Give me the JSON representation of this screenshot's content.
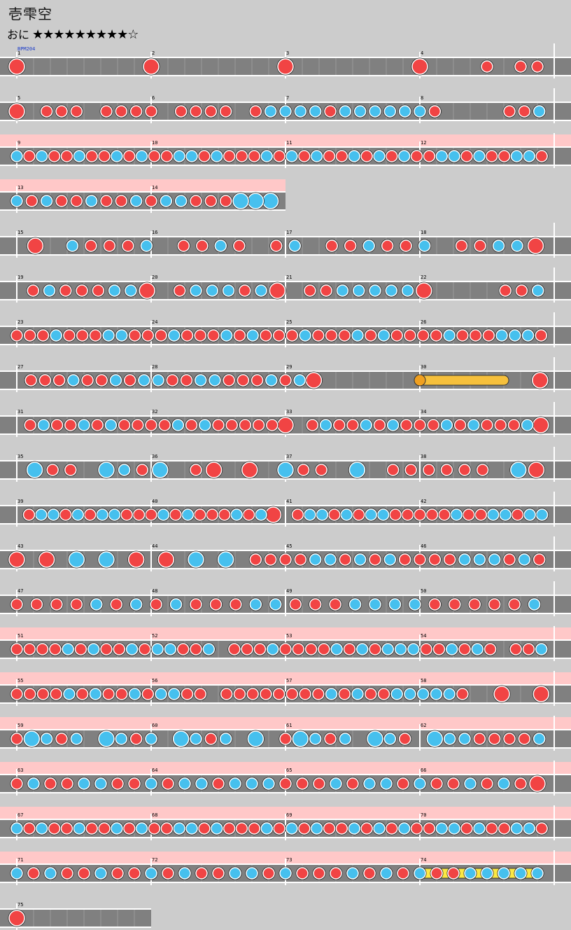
{
  "song": {
    "title": "壱雫空",
    "difficulty_label": "おに",
    "stars": "★★★★★★★★★☆"
  },
  "bpm_marker": {
    "label": "BPM204",
    "measure": 1
  },
  "colors": {
    "don": "#f14444",
    "ka": "#46c0ee",
    "lane": "#808080",
    "gogo": "#ffc8c8",
    "drumroll": "#f6c03c",
    "balloon_roll": "#fbe844",
    "background": "#cccccc"
  },
  "layout_info": {
    "measures_per_row": 4,
    "beats_per_measure": 8
  },
  "rows": [
    {
      "measures": [
        1,
        2,
        3,
        4
      ],
      "gogo": false,
      "lengths": [
        4,
        4,
        4,
        4
      ],
      "notes": "D.......D.......D.......D...d.dd"
    },
    {
      "measures": [
        5,
        6,
        7,
        8
      ],
      "gogo": false,
      "lengths": [
        4,
        4,
        4,
        4
      ],
      "notes": "D.ddd.dddd.dddd.dkkkkdkkkkkkd....ddk"
    },
    {
      "measures": [
        9,
        10,
        11,
        12
      ],
      "gogo": true,
      "lengths": [
        4,
        4,
        4,
        4
      ],
      "notes": "kdkddkddkdkddkkdkdddkdkdkddkdkdkddkkdkddkkd"
    },
    {
      "measures": [
        13,
        14
      ],
      "gogo": true,
      "lengths": [
        4,
        4
      ],
      "notes": "kdkddkddkdkkdddKKK"
    },
    {
      "measures": [
        15,
        16,
        17,
        18
      ],
      "gogo": false,
      "lengths": [
        4,
        4,
        4,
        4
      ],
      "notes": ".D.kdddk.ddkd.dk.ddkddk.ddkkD"
    },
    {
      "measures": [
        19,
        20,
        21,
        22
      ],
      "gogo": false,
      "lengths": [
        4,
        4,
        4,
        4
      ],
      "notes": ".dkdddkkD.dkkkdkD.ddkkkkkD....ddk"
    },
    {
      "measures": [
        23,
        24,
        25,
        26
      ],
      "gogo": false,
      "lengths": [
        4,
        4,
        4,
        4
      ],
      "notes": "dddkdddkkdddkdddkdkdddkdddkdkddddkdddkkkd"
    },
    {
      "measures": [
        27,
        28,
        29,
        30
      ],
      "gogo": false,
      "lengths": [
        4,
        4,
        4,
        4
      ],
      "notes": ".dddkddkdkkddkkdddkdkD...............D",
      "drumroll": {
        "start_measure": 30,
        "start_beat": 0,
        "end_measure": 30,
        "end_beat": 5,
        "balloon": true
      }
    },
    {
      "measures": [
        31,
        32,
        33,
        34
      ],
      "gogo": false,
      "lengths": [
        4,
        4,
        4,
        4
      ],
      "notes": ".dkddkdkddddkdkdddddD.dkddkdkdddkdkdddkD"
    },
    {
      "measures": [
        35,
        36,
        37,
        38
      ],
      "gogo": false,
      "lengths": [
        4,
        4,
        4,
        4
      ],
      "notes": ".Kdd.KkdK.dD.D.Kdd.K.dddddd.KD"
    },
    {
      "measures": [
        39,
        40,
        41,
        42
      ],
      "gogo": false,
      "lengths": [
        4,
        4,
        4,
        4
      ],
      "notes": ".dkkdkdkkdddkdkdddkdkD.dkkdkdkkdddddkddkkdkk"
    },
    {
      "measures": [
        43,
        44,
        45,
        46
      ],
      "gogo": false,
      "lengths": [
        4,
        4,
        4,
        4
      ],
      "notes": "D.D.K.K.D.D.K.K.ddddkkdkdkddddkkkdkd"
    },
    {
      "measures": [
        47,
        48,
        49,
        50
      ],
      "gogo": false,
      "lengths": [
        4,
        4,
        4,
        4
      ],
      "notes": "ddddkdkdkdddkkdddkkkkdddddk"
    },
    {
      "measures": [
        51,
        52,
        53,
        54
      ],
      "gogo": true,
      "lengths": [
        4,
        4,
        4,
        4
      ],
      "notes": "ddddkdkddkdkkddk.dddkddddkdkdkkkddkdkd.ddk"
    },
    {
      "measures": [
        55,
        56,
        57,
        58
      ],
      "gogo": true,
      "lengths": [
        4,
        4,
        4,
        4
      ],
      "notes": "ddddkdkddkdkkdd.ddddddddkdkddkkkkkd..D..D"
    },
    {
      "measures": [
        59,
        60,
        61,
        62
      ],
      "gogo": true,
      "lengths": [
        4,
        4,
        4,
        4
      ],
      "notes": "dKkdk.Kkdk.Kkdk.K.dKkdk.Kkd.Kkkddddk"
    },
    {
      "measures": [
        63,
        64,
        65,
        66
      ],
      "gogo": true,
      "lengths": [
        4,
        4,
        4,
        4
      ],
      "notes": "dkddkkddkdkkdkkkdddkdkkdkddkdkdD"
    },
    {
      "measures": [
        67,
        68,
        69,
        70
      ],
      "gogo": true,
      "lengths": [
        4,
        4,
        4,
        4
      ],
      "notes": "kdkddkddkdkddkkdkdddkdkdkddkdkdkddkkdkddkkd"
    },
    {
      "measures": [
        71,
        72,
        73,
        74
      ],
      "gogo": true,
      "lengths": [
        4,
        4,
        4,
        4
      ],
      "notes": "kdkddkddkdkddkkdkdddkdkdkddkkkkk",
      "drumroll": {
        "start_measure": 74,
        "start_beat": 0,
        "end_measure": 74,
        "end_beat": 7,
        "balloon": false
      }
    },
    {
      "measures": [
        75
      ],
      "gogo": false,
      "lengths": [
        4
      ],
      "notes": "D......."
    }
  ]
}
